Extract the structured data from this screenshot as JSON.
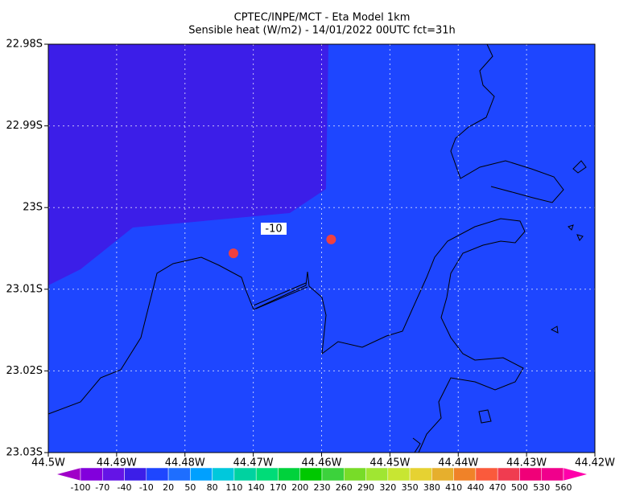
{
  "chart_data": {
    "type": "map",
    "title": [
      "CPTEC/INPE/MCT -  Eta Model 1km",
      "Sensible heat (W/m2) - 14/01/2022 00UTC fct=31h"
    ],
    "xlim": [
      -44.5,
      -44.42
    ],
    "ylim": [
      -23.03,
      -22.98
    ],
    "xticks": [
      {
        "value": -44.5,
        "label": "44.5W"
      },
      {
        "value": -44.49,
        "label": "44.49W"
      },
      {
        "value": -44.48,
        "label": "44.48W"
      },
      {
        "value": -44.47,
        "label": "44.47W"
      },
      {
        "value": -44.46,
        "label": "44.46W"
      },
      {
        "value": -44.45,
        "label": "44.45W"
      },
      {
        "value": -44.44,
        "label": "44.44W"
      },
      {
        "value": -44.43,
        "label": "44.43W"
      },
      {
        "value": -44.42,
        "label": "44.42W"
      }
    ],
    "yticks": [
      {
        "value": -22.98,
        "label": "22.98S"
      },
      {
        "value": -22.99,
        "label": "22.99S"
      },
      {
        "value": -23.0,
        "label": "23S"
      },
      {
        "value": -23.01,
        "label": "23.01S"
      },
      {
        "value": -23.02,
        "label": "23.02S"
      },
      {
        "value": -23.03,
        "label": "23.03S"
      }
    ],
    "grid": true,
    "contour_label": {
      "value": -10,
      "label": "-10"
    },
    "points": {
      "color": "#f04040",
      "lon": [
        -44.4729,
        -44.4586
      ],
      "lat": [
        -23.0056,
        -23.0039
      ]
    },
    "colorbar": {
      "levels": [
        -100,
        -70,
        -40,
        -10,
        20,
        50,
        80,
        110,
        140,
        170,
        200,
        230,
        260,
        290,
        320,
        350,
        380,
        410,
        440,
        470,
        500,
        530,
        560
      ],
      "colors": [
        "#a000c8",
        "#8200dc",
        "#6414e6",
        "#3c1ee8",
        "#1e46ff",
        "#1e6eff",
        "#00a0ff",
        "#00c8dc",
        "#00d2a0",
        "#00dc78",
        "#00d23c",
        "#00c800",
        "#3cd23c",
        "#78dc28",
        "#a0e632",
        "#c8e632",
        "#e6d232",
        "#e6af2d",
        "#f08228",
        "#fa5a3c",
        "#f03c50",
        "#f00078",
        "#f0008c",
        "#ff00aa"
      ]
    }
  }
}
